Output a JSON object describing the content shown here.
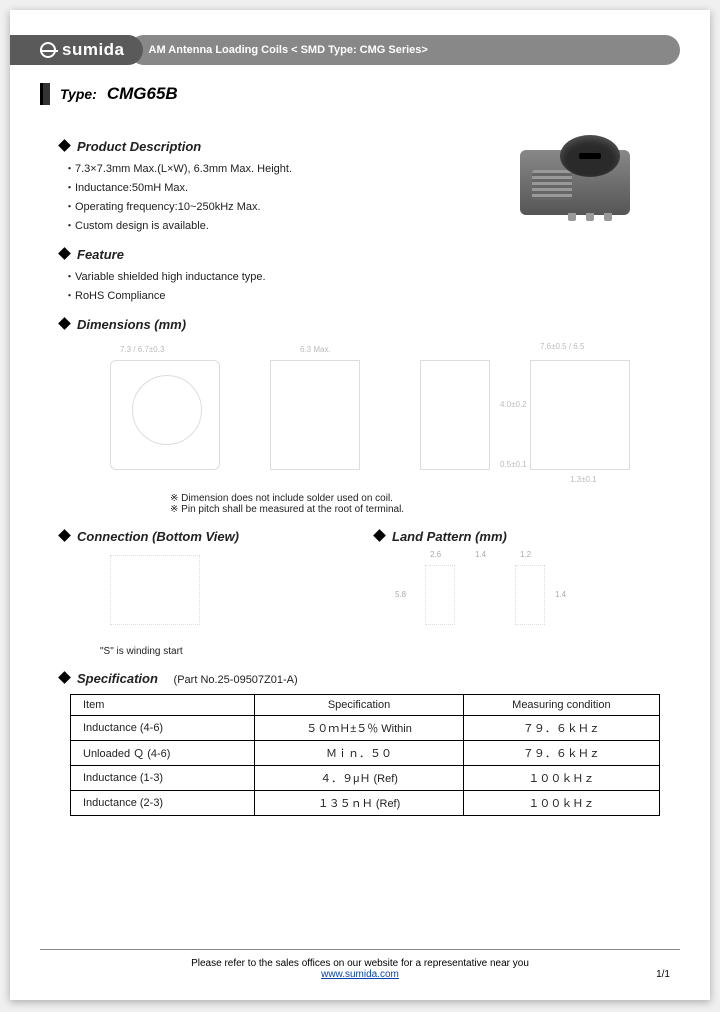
{
  "header": {
    "brand": "sumida",
    "title": "AM Antenna Loading Coils < SMD Type: CMG Series>"
  },
  "type": {
    "label": "Type:",
    "value": "CMG65B"
  },
  "product_description": {
    "heading": "Product Description",
    "items": [
      "7.3×7.3mm Max.(L×W), 6.3mm Max. Height.",
      "Inductance:50mH Max.",
      "Operating frequency:10~250kHz Max.",
      "Custom design is available."
    ]
  },
  "feature": {
    "heading": "Feature",
    "items": [
      "Variable shielded high inductance type.",
      "RoHS Compliance"
    ]
  },
  "dimensions": {
    "heading": "Dimensions (mm)",
    "labels": {
      "a": "7.3 / 6.7±0.3",
      "b": "6.3 Max.",
      "c": "7.6±0.5 / 6.5",
      "d": "4.0±0.2",
      "e": "0.5±0.1",
      "f": "1.3±0.1"
    },
    "notes": [
      "Dimension does not include solder used on coil.",
      "Pin pitch shall be measured at the root of terminal."
    ]
  },
  "connection": {
    "heading": "Connection (Bottom View)",
    "caption": "\"S\" is winding start"
  },
  "land_pattern": {
    "heading": "Land Pattern (mm)",
    "labels": {
      "a": "2.6",
      "b": "1.4",
      "c": "1.2",
      "d": "5.8",
      "e": "1.4"
    }
  },
  "specification": {
    "heading": "Specification",
    "partno": "(Part No.25-09507Z01-A)",
    "columns": [
      "Item",
      "Specification",
      "Measuring condition"
    ],
    "rows": [
      [
        "Inductance    (4-6)",
        "５０ｍＨ±５％  Within",
        "７９．６ｋＨｚ"
      ],
      [
        "Unloaded Ｑ (4-6)",
        "Ｍｉｎ．５０",
        "７９．６ｋＨｚ"
      ],
      [
        "Inductance    (1-3)",
        "４．９μＨ  (Ref)",
        "１００ｋＨｚ"
      ],
      [
        "Inductance    (2-3)",
        "１３５ｎＨ  (Ref)",
        "１００ｋＨｚ"
      ]
    ]
  },
  "footer": {
    "text": "Please refer to the sales offices on our website for a representative near you",
    "url": "www.sumida.com",
    "pageno": "1/1"
  }
}
